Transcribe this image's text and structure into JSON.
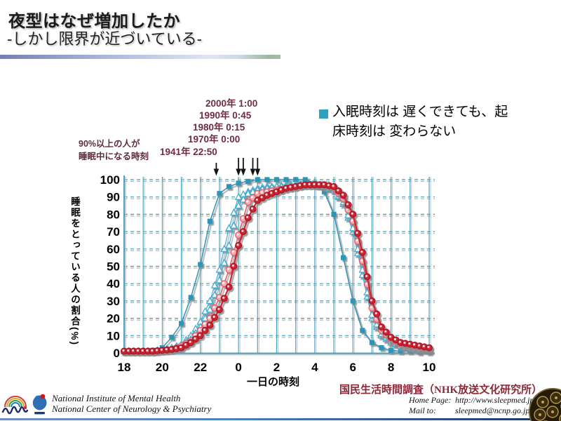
{
  "slide": {
    "title": "夜型はなぜ増加したか",
    "subtitle": "-しかし限界が近づいている-"
  },
  "bullet": {
    "line1": "入眠時刻は 遅くできても、起",
    "line2": "床時刻は 変わらない"
  },
  "annotations": {
    "label90_line1": "90%以上の人が",
    "label90_line2": "睡眠中になる時刻",
    "years": [
      {
        "label": "2000年 1:00",
        "t": 25.0
      },
      {
        "label": "1990年 0:45",
        "t": 24.75
      },
      {
        "label": "1980年 0:15",
        "t": 24.25
      },
      {
        "label": "1970年 0:00",
        "t": 24.0
      },
      {
        "label": "1941年 22:50",
        "t": 22.833
      }
    ]
  },
  "chart_data": {
    "type": "line",
    "title": "",
    "xlabel": "一日の時刻",
    "ylabel": "睡眠をとっている人の割合(%)",
    "x_unit": "hour of day (18:00 through 10:00 next day)",
    "x_start": 18,
    "x_step": 0.5,
    "x_tick_hours": [
      18,
      20,
      22,
      24,
      26,
      28,
      30,
      32,
      34
    ],
    "x_tick_labels": [
      "18",
      "20",
      "22",
      "0",
      "2",
      "4",
      "6",
      "8",
      "10"
    ],
    "y_ticks": [
      0,
      10,
      20,
      30,
      40,
      50,
      60,
      70,
      80,
      90,
      100
    ],
    "ylim": [
      0,
      100
    ],
    "grid": {
      "vertical": "solid every hour",
      "horizontal": "dashed every 10%"
    },
    "legend_position": "none (years indicated by arrow annotations)",
    "series": [
      {
        "name": "1941年",
        "marker": "square",
        "color": "#2e96b5",
        "fill": "#2e96b5",
        "line_color": "#2e96b5",
        "line_width": 1.5,
        "values": [
          1,
          1,
          1,
          1.5,
          3,
          9,
          17,
          32,
          51,
          76,
          92,
          96,
          98,
          99,
          100,
          100,
          100,
          100,
          100,
          100,
          98,
          93,
          80,
          55,
          30,
          13,
          6,
          3,
          1.5,
          1,
          1,
          0.5,
          0.5
        ]
      },
      {
        "name": "1970年",
        "marker": "triangle",
        "color": "#45aed3",
        "fill": "#ffffff",
        "line_color": "#45aed3",
        "line_width": 1.2,
        "values": [
          1,
          1,
          1,
          1,
          2,
          3,
          5,
          10,
          18,
          30,
          48,
          72,
          90,
          93,
          95,
          96,
          96,
          97,
          97,
          97,
          97,
          96,
          94,
          86,
          70,
          45,
          20,
          10,
          6,
          4,
          3,
          2,
          2
        ]
      },
      {
        "name": "1980年",
        "marker": "triangle",
        "color": "#45aed3",
        "fill": "#ffffff",
        "line_color": "#45aed3",
        "line_width": 1.2,
        "values": [
          1,
          1,
          1,
          1,
          1.5,
          3,
          4,
          8,
          15,
          25,
          42,
          62,
          85,
          92,
          94,
          95,
          96,
          96,
          97,
          97,
          97,
          96,
          94,
          87,
          72,
          48,
          22,
          11,
          7,
          4,
          3,
          2,
          2
        ]
      },
      {
        "name": "1990年",
        "marker": "circle",
        "color": "#e05a67",
        "fill": "#f6aab2",
        "line_color": "#e2606c",
        "line_width": 1.6,
        "values": [
          1,
          1,
          1,
          1,
          1.5,
          2,
          4,
          7,
          13,
          20,
          32,
          48,
          68,
          87,
          92,
          93,
          94,
          95,
          96,
          97,
          97,
          97,
          95,
          89,
          76,
          53,
          26,
          13,
          8,
          5,
          4,
          3,
          2.5
        ]
      },
      {
        "name": "2000年",
        "marker": "circle",
        "color": "#a51722",
        "fill": "#cf2030",
        "line_color": "#cf2030",
        "line_width": 2.2,
        "values": [
          1,
          1,
          1,
          1,
          1.5,
          2,
          3,
          6,
          10,
          16,
          25,
          38,
          62,
          78,
          88,
          91,
          93,
          95,
          96,
          97,
          97,
          97,
          96,
          91,
          80,
          58,
          30,
          15,
          9,
          6,
          5,
          4,
          3
        ]
      }
    ]
  },
  "source": "国民生活時間調査（NHK放送文化研究所）",
  "footer": {
    "org_line1": "National Institute of Mental Health",
    "org_line2": "National Center of Neurology & Psychiatry",
    "homepage_label": "Home Page:",
    "homepage_value": "http://www.sleepmed.jp/",
    "mail_label": "Mail to:",
    "mail_value": "sleepmed@ncnp.go.jp"
  },
  "colors": {
    "grid_teal": "#3fa0c0",
    "grid_shadow": "#b3b3b3",
    "axis_teal": "#2e96b5",
    "arrow_black": "#141414",
    "annotation_maroon": "#702d3f",
    "bullet_teal": "#2fa0c0",
    "source_red": "#8c2738"
  }
}
